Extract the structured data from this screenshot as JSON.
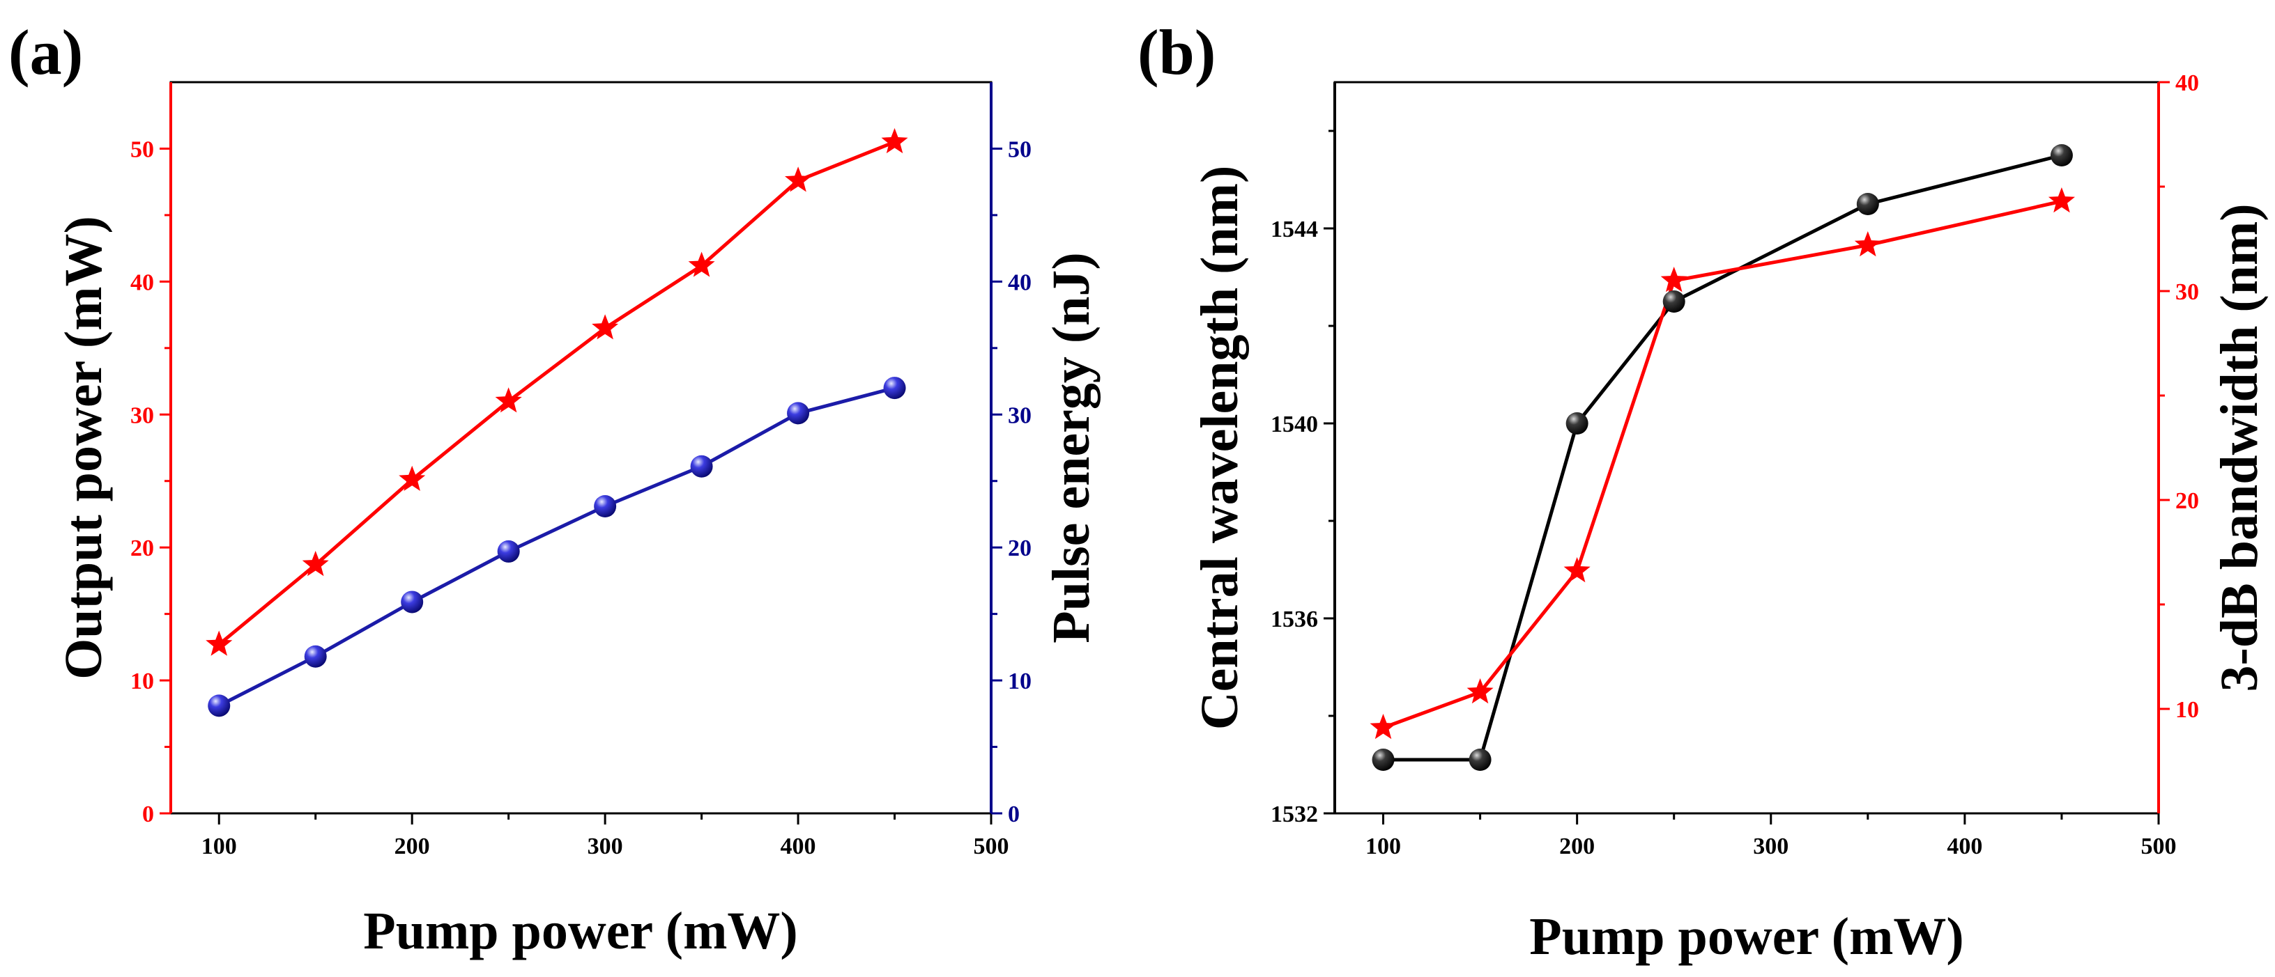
{
  "chart_data": [
    {
      "panel_label": "(a)",
      "type": "line",
      "xlabel": "Pump power (mW)",
      "ylabel": "Output power (mW)",
      "y2label": "Pulse energy (nJ)",
      "xlim": [
        75,
        500
      ],
      "ylim": [
        0,
        55
      ],
      "y2lim": [
        0,
        55
      ],
      "xticks": [
        100,
        200,
        300,
        400,
        500
      ],
      "yticks": [
        0,
        10,
        20,
        30,
        40,
        50
      ],
      "y2ticks": [
        0,
        10,
        20,
        30,
        40,
        50
      ],
      "left_axis_color": "#ff0000",
      "right_axis_color": "#00008b",
      "grid": false,
      "series": [
        {
          "name": "Output power",
          "axis": "left",
          "marker": "star",
          "color": "#ff0000",
          "x": [
            100,
            150,
            200,
            250,
            300,
            350,
            400,
            450
          ],
          "values": [
            12.7,
            18.7,
            25.1,
            31.0,
            36.5,
            41.2,
            47.6,
            50.5
          ]
        },
        {
          "name": "Pulse energy",
          "axis": "right",
          "marker": "ball",
          "color": "#1b1ba8",
          "x": [
            100,
            150,
            200,
            250,
            300,
            350,
            400,
            450
          ],
          "values": [
            8.1,
            11.8,
            15.9,
            19.7,
            23.1,
            26.1,
            30.1,
            32.0
          ]
        }
      ]
    },
    {
      "panel_label": "(b)",
      "type": "line",
      "xlabel": "Pump power (mW)",
      "ylabel": "Central wavelength (nm)",
      "y2label": "3-dB bandwidth (nm)",
      "xlim": [
        75,
        500
      ],
      "ylim": [
        1532,
        1547
      ],
      "y2lim": [
        5,
        40
      ],
      "xticks": [
        100,
        200,
        300,
        400,
        500
      ],
      "yticks": [
        1532,
        1536,
        1540,
        1544
      ],
      "y2ticks": [
        10,
        20,
        30,
        40
      ],
      "left_axis_color": "#000000",
      "right_axis_color": "#ff0000",
      "grid": false,
      "series": [
        {
          "name": "Central wavelength",
          "axis": "left",
          "marker": "ball",
          "color": "#000000",
          "x": [
            100,
            150,
            200,
            250,
            350,
            450
          ],
          "values": [
            1533.1,
            1533.1,
            1540.0,
            1542.5,
            1544.5,
            1545.5
          ]
        },
        {
          "name": "3-dB bandwidth",
          "axis": "right",
          "marker": "star",
          "color": "#ff0000",
          "x": [
            100,
            150,
            200,
            250,
            350,
            450
          ],
          "values": [
            9.1,
            10.8,
            16.6,
            30.5,
            32.2,
            34.3
          ]
        }
      ]
    }
  ]
}
